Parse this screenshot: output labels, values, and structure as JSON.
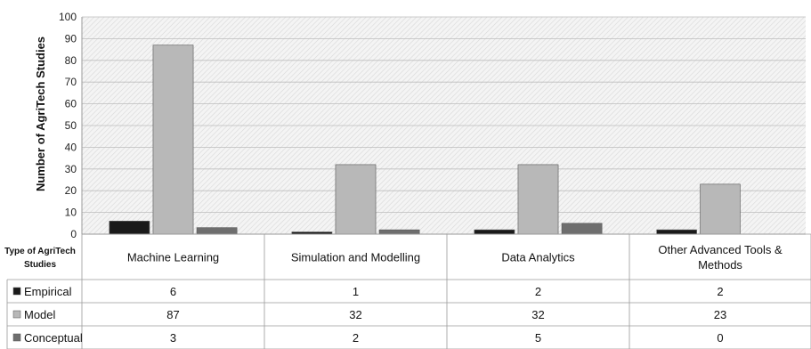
{
  "chart_data": {
    "type": "bar",
    "title": "",
    "xlabel": "",
    "ylabel": "Number of AgriTech Studies",
    "ylim": [
      0,
      100
    ],
    "yticks": [
      0,
      10,
      20,
      30,
      40,
      50,
      60,
      70,
      80,
      90,
      100
    ],
    "grid": true,
    "legend": "data-table",
    "table_corner_label": [
      "Type of AgriTech",
      "Studies"
    ],
    "categories": [
      [
        "Machine Learning"
      ],
      [
        "Simulation and Modelling"
      ],
      [
        "Data Analytics"
      ],
      [
        "Other Advanced Tools &",
        "Methods"
      ]
    ],
    "series": [
      {
        "name": "Empirical",
        "color": "#1a1a1a",
        "values": [
          6,
          1,
          2,
          2
        ]
      },
      {
        "name": "Model",
        "color": "#b8b8b8",
        "values": [
          87,
          32,
          32,
          23
        ]
      },
      {
        "name": "Conceptual",
        "color": "#6e6e6e",
        "values": [
          3,
          2,
          5,
          0
        ]
      }
    ]
  }
}
